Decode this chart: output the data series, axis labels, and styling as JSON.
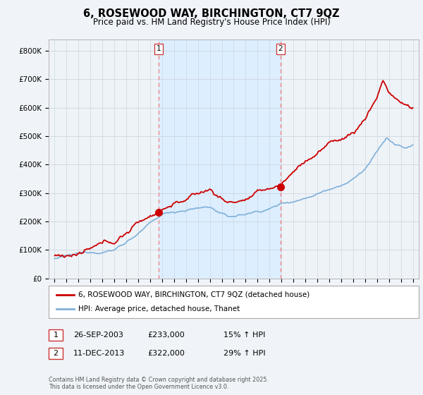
{
  "title": "6, ROSEWOOD WAY, BIRCHINGTON, CT7 9QZ",
  "subtitle": "Price paid vs. HM Land Registry's House Price Index (HPI)",
  "ylabel_ticks": [
    "£0",
    "£100K",
    "£200K",
    "£300K",
    "£400K",
    "£500K",
    "£600K",
    "£700K",
    "£800K"
  ],
  "ytick_values": [
    0,
    100000,
    200000,
    300000,
    400000,
    500000,
    600000,
    700000,
    800000
  ],
  "ylim": [
    0,
    840000
  ],
  "line1_color": "#cc0000",
  "line2_color": "#7fb0d8",
  "vline_color": "#ee8888",
  "shade_color": "#ddeeff",
  "marker1_year": 2003.73,
  "marker2_year": 2013.92,
  "marker1_price": 233000,
  "marker2_price": 322000,
  "transaction1": [
    "1",
    "26-SEP-2003",
    "£233,000",
    "15% ↑ HPI"
  ],
  "transaction2": [
    "2",
    "11-DEC-2013",
    "£322,000",
    "29% ↑ HPI"
  ],
  "legend_line1": "6, ROSEWOOD WAY, BIRCHINGTON, CT7 9QZ (detached house)",
  "legend_line2": "HPI: Average price, detached house, Thanet",
  "footnote": "Contains HM Land Registry data © Crown copyright and database right 2025.\nThis data is licensed under the Open Government Licence v3.0.",
  "fig_bg_color": "#f0f4f8",
  "plot_bg_color": "#eef3f8",
  "x_start_year": 1995,
  "x_end_year": 2025
}
